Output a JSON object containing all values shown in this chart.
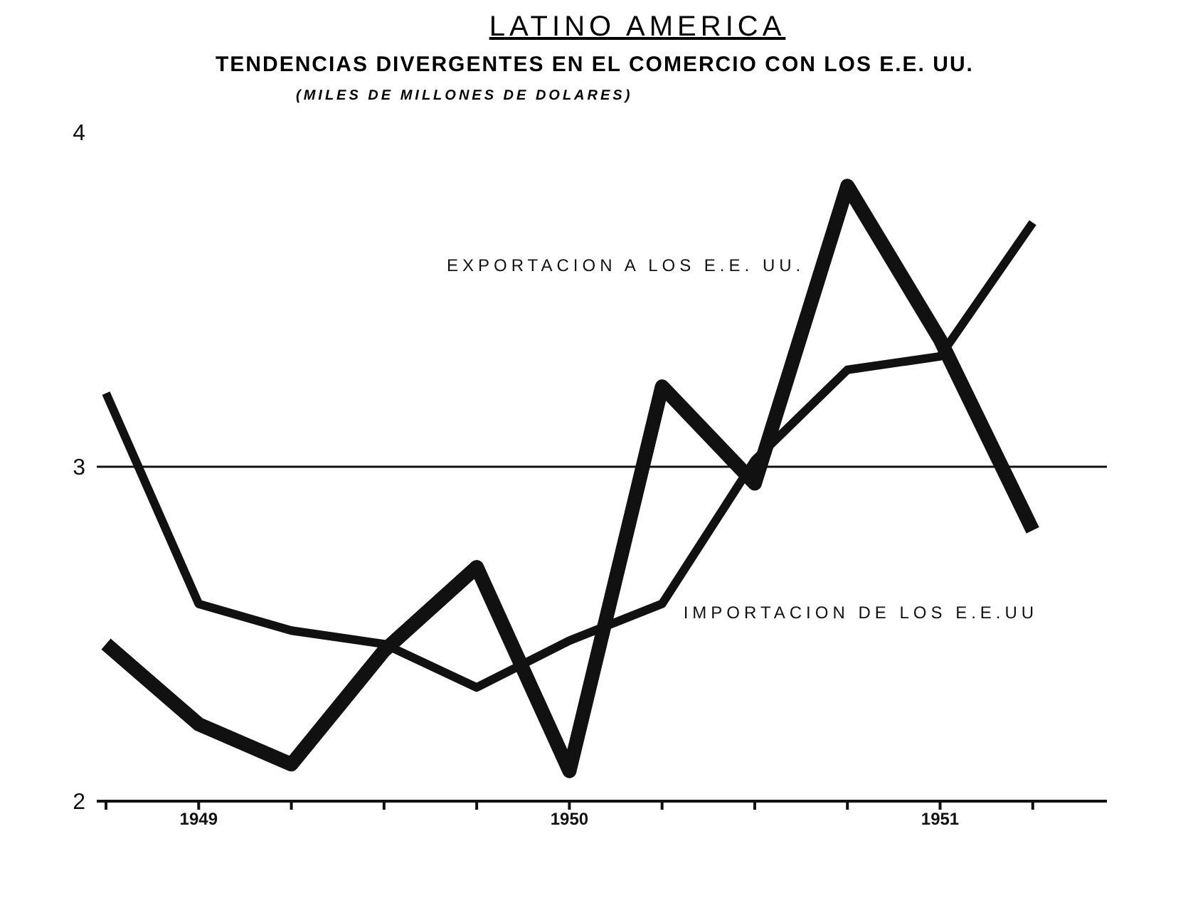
{
  "chart_data": {
    "type": "line",
    "title": "LATINO AMERICA",
    "subtitle": "TENDENCIAS DIVERGENTES EN EL COMERCIO CON LOS E.E. UU.",
    "annotations": [
      "(MILES DE MILLONES DE DOLARES)"
    ],
    "categories": [
      null,
      "1949",
      null,
      null,
      null,
      "1950",
      null,
      null,
      null,
      "1951",
      null
    ],
    "series": [
      {
        "name": "EXPORTACION A LOS E.E. UU.",
        "color": "#111111",
        "values": [
          2.47,
          2.23,
          2.11,
          2.45,
          2.7,
          2.09,
          3.24,
          2.95,
          3.84,
          3.38,
          2.81
        ]
      },
      {
        "name": "IMPORTACION DE LOS E.E.UU",
        "color": "#111111",
        "values": [
          3.22,
          2.59,
          2.51,
          2.47,
          2.34,
          2.48,
          2.59,
          3.02,
          3.29,
          3.33,
          3.73
        ]
      }
    ],
    "ylim": [
      2,
      4
    ],
    "yticks": [
      2,
      3,
      4
    ],
    "ref_lines": [
      {
        "axis": "y",
        "value": 3
      }
    ],
    "grid": false,
    "legend": false,
    "marker": "none",
    "line_style": "solid"
  }
}
